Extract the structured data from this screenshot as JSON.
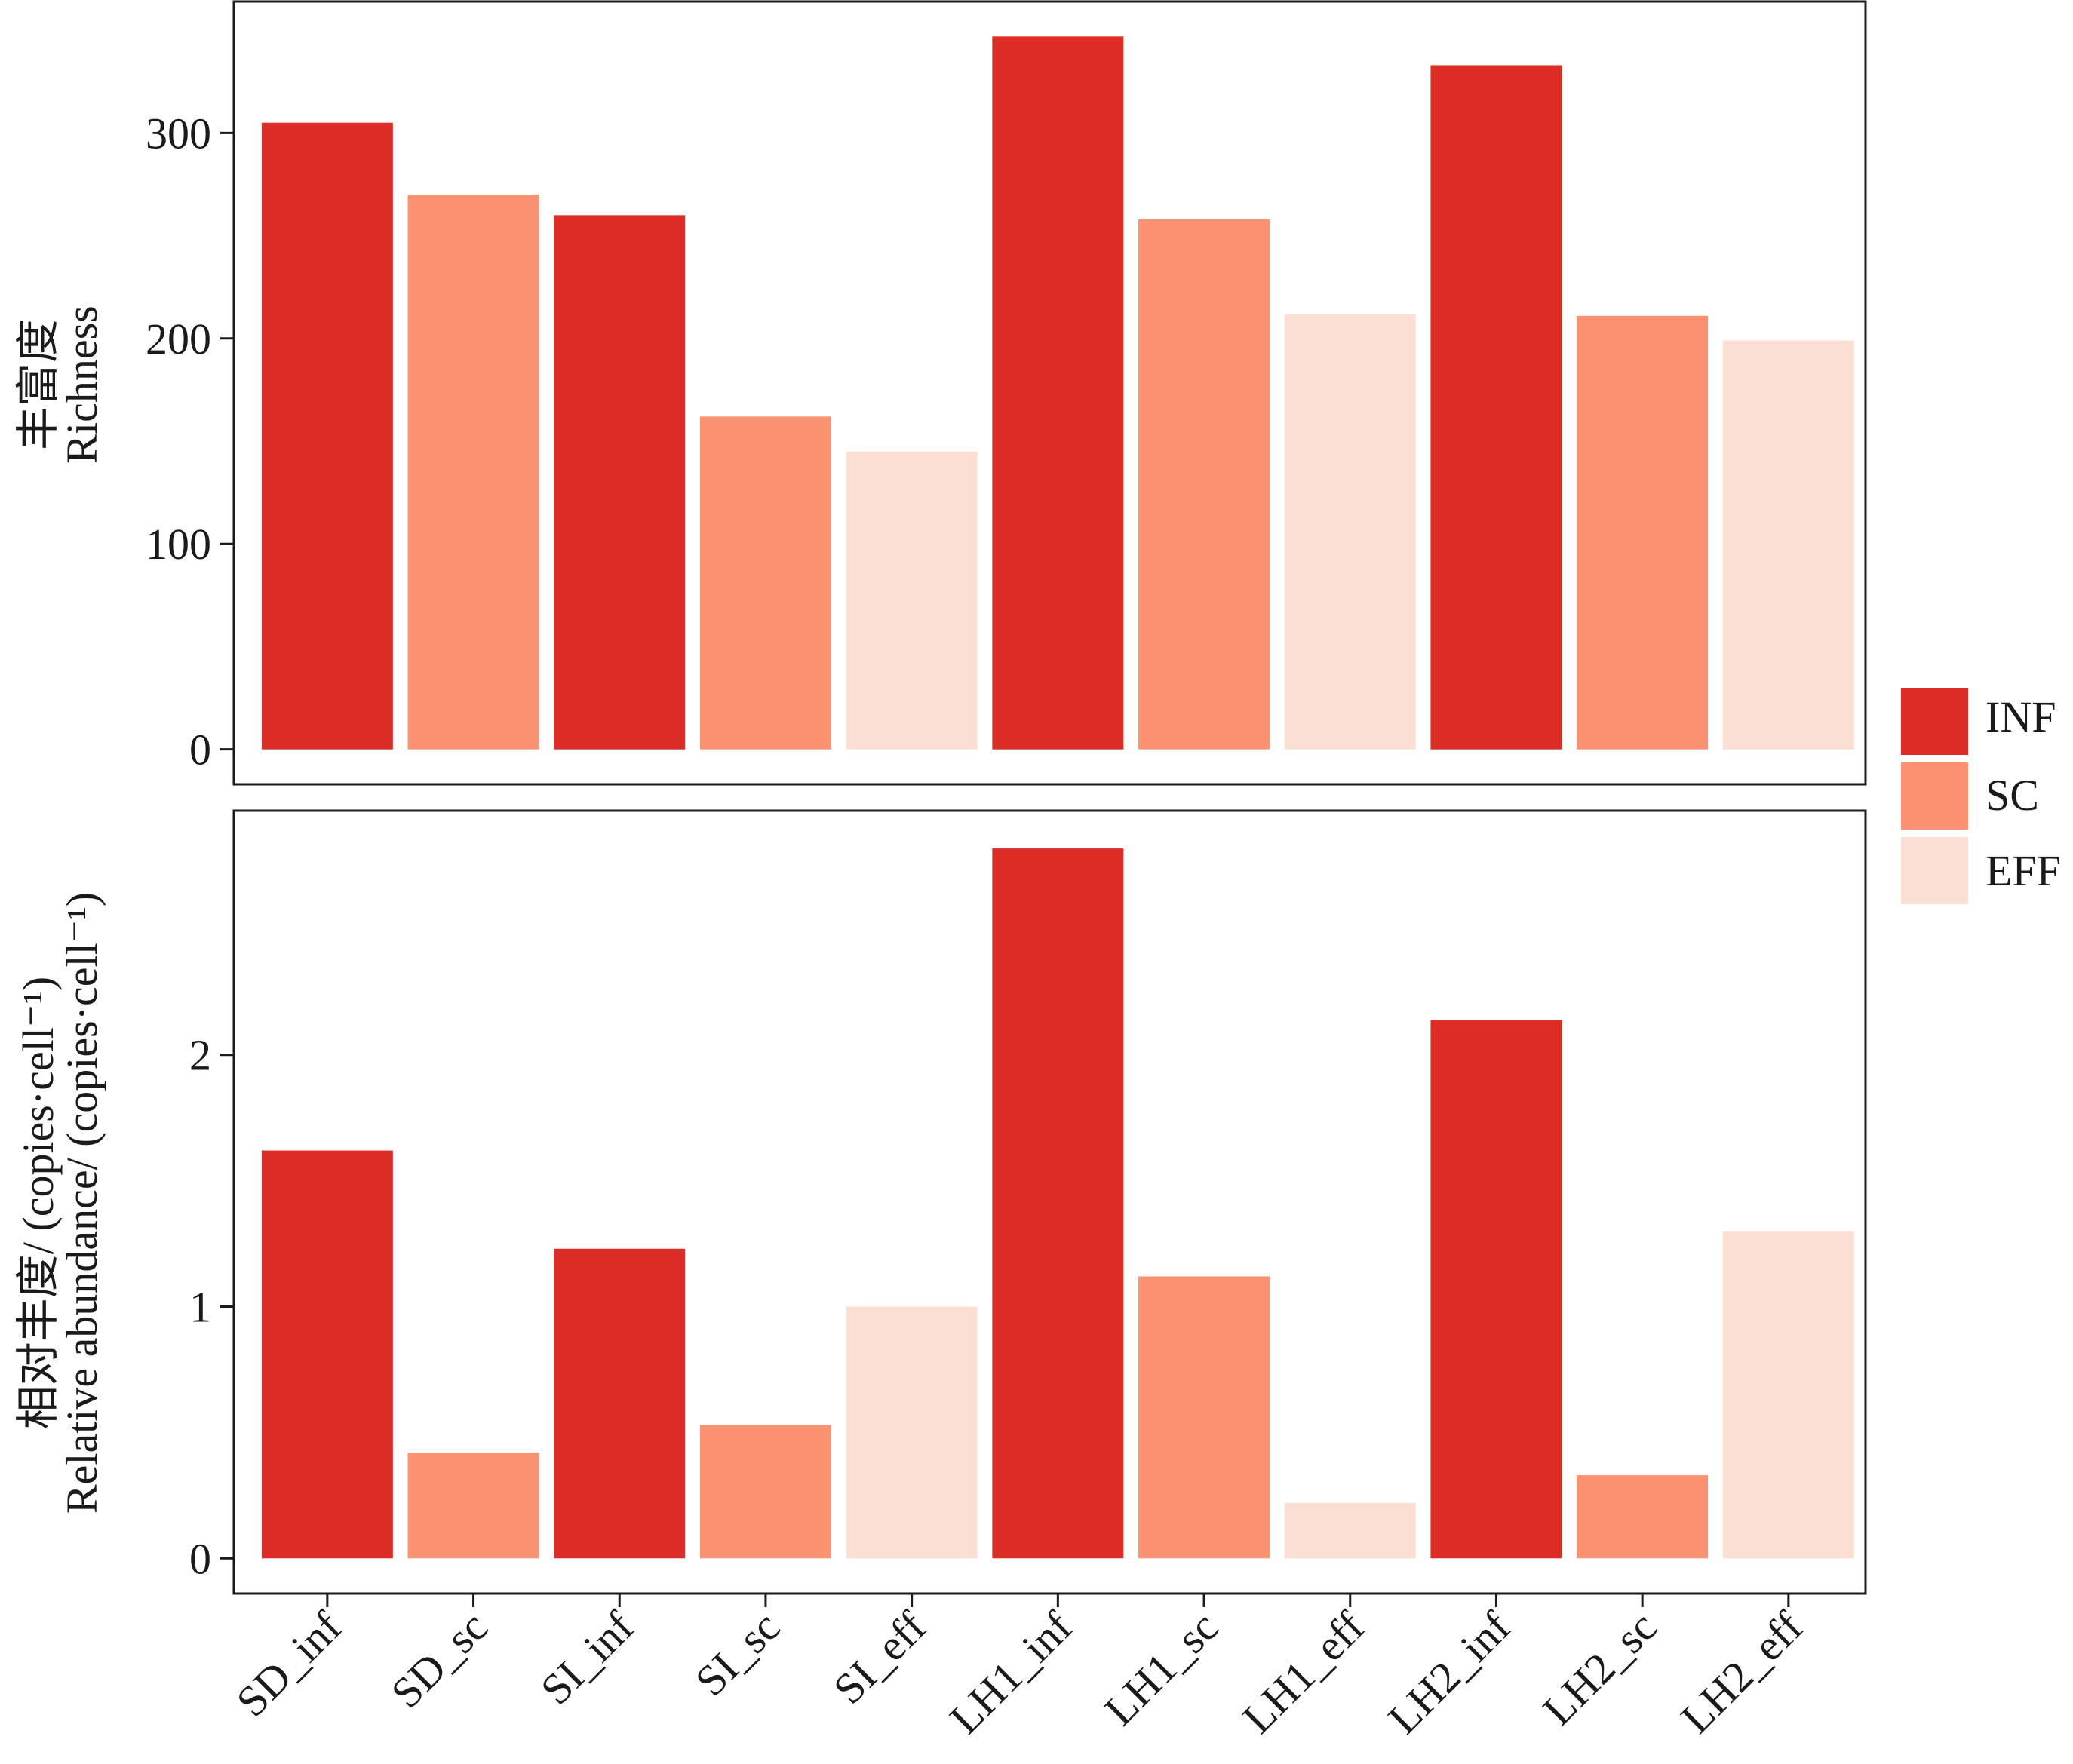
{
  "chart_data": [
    {
      "type": "bar",
      "categories": [
        "SD_inf",
        "SD_sc",
        "SI_inf",
        "SI_sc",
        "SI_eff",
        "LH1_inf",
        "LH1_sc",
        "LH1_eff",
        "LH2_inf",
        "LH2_sc",
        "LH2_eff"
      ],
      "groups": [
        "INF",
        "SC",
        "INF",
        "SC",
        "EFF",
        "INF",
        "SC",
        "EFF",
        "INF",
        "SC",
        "EFF"
      ],
      "values": [
        305,
        270,
        260,
        162,
        145,
        347,
        258,
        212,
        333,
        211,
        199
      ],
      "ylabel_zh": "丰富度",
      "ylabel_en": "Richness",
      "yticks": [
        0,
        100,
        200,
        300
      ],
      "ylim": [
        -17,
        364
      ],
      "show_x_tick_labels": false
    },
    {
      "type": "bar",
      "categories": [
        "SD_inf",
        "SD_sc",
        "SI_inf",
        "SI_sc",
        "SI_eff",
        "LH1_inf",
        "LH1_sc",
        "LH1_eff",
        "LH2_inf",
        "LH2_sc",
        "LH2_eff"
      ],
      "groups": [
        "INF",
        "SC",
        "INF",
        "SC",
        "EFF",
        "INF",
        "SC",
        "EFF",
        "INF",
        "SC",
        "EFF"
      ],
      "values": [
        1.62,
        0.42,
        1.23,
        0.53,
        1.0,
        2.82,
        1.12,
        0.22,
        2.14,
        0.33,
        1.3
      ],
      "ylabel_zh": "相对丰度/ (copies·cell⁻¹)",
      "ylabel_en": "Relative abundance/ (copies·cell⁻¹)",
      "yticks": [
        0,
        1,
        2
      ],
      "ylim": [
        -0.14,
        2.97
      ],
      "show_x_tick_labels": true
    }
  ],
  "legend": {
    "position": "right",
    "items": [
      {
        "label": "INF",
        "color": "#de2d26"
      },
      {
        "label": "SC",
        "color": "#fb9372"
      },
      {
        "label": "EFF",
        "color": "#fcdfd3"
      }
    ]
  },
  "colors": {
    "INF": "#de2d26",
    "SC": "#fb9372",
    "EFF": "#fcdfd3"
  }
}
